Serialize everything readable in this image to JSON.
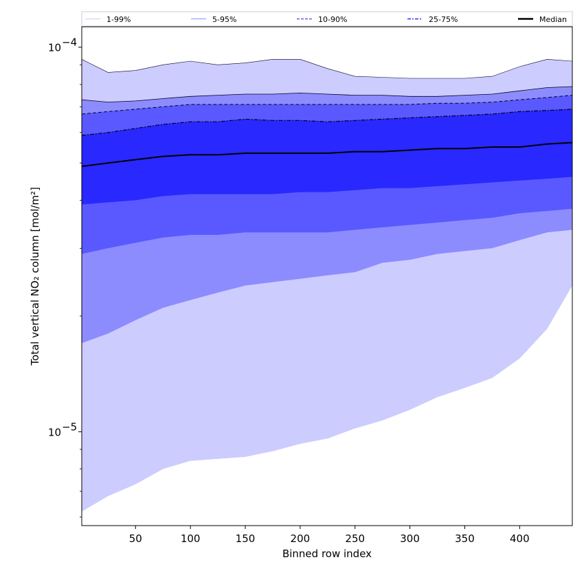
{
  "chart_data": {
    "type": "area",
    "title": "",
    "xlabel": "Binned row index",
    "ylabel": "Total vertical NO₂ column [mol/m²]",
    "xlim": [
      1,
      448
    ],
    "ylim": [
      5.7e-06,
      0.000113
    ],
    "yscale": "log",
    "x_ticks": [
      50,
      100,
      150,
      200,
      250,
      300,
      350,
      400
    ],
    "y_ticks": [
      {
        "value": 1e-05,
        "base": "10",
        "exp": "−5"
      },
      {
        "value": 0.0001,
        "base": "10",
        "exp": "−4"
      }
    ],
    "legend_position": "top",
    "legend": [
      {
        "label": "1-99%",
        "style": "solid-thin",
        "color": "#ccccff"
      },
      {
        "label": "5-95%",
        "style": "solid-thin",
        "color": "#8c8cff"
      },
      {
        "label": "10-90%",
        "style": "dashed",
        "color": "#5a5aff"
      },
      {
        "label": "25-75%",
        "style": "dashdot",
        "color": "#2b2bff"
      },
      {
        "label": "Median",
        "style": "solid-thick",
        "color": "#000000"
      }
    ],
    "colors": {
      "band_1_99": "#ccccff",
      "band_5_95": "#8c8cff",
      "band_10_90": "#5959ff",
      "band_25_75": "#2828ff",
      "median": "#000000"
    },
    "x": [
      1,
      25,
      50,
      75,
      100,
      125,
      150,
      175,
      200,
      225,
      250,
      275,
      300,
      325,
      350,
      375,
      400,
      425,
      448
    ],
    "series": [
      {
        "name": "99%",
        "values": [
          9.3e-05,
          8.6e-05,
          8.7e-05,
          9e-05,
          9.2e-05,
          9e-05,
          9.1e-05,
          9.3e-05,
          9.3e-05,
          8.8e-05,
          8.4e-05,
          8.35e-05,
          8.3e-05,
          8.3e-05,
          8.3e-05,
          8.4e-05,
          8.9e-05,
          9.3e-05,
          9.2e-05
        ]
      },
      {
        "name": "95%",
        "values": [
          7.3e-05,
          7.2e-05,
          7.25e-05,
          7.35e-05,
          7.45e-05,
          7.5e-05,
          7.55e-05,
          7.55e-05,
          7.6e-05,
          7.55e-05,
          7.5e-05,
          7.5e-05,
          7.45e-05,
          7.45e-05,
          7.5e-05,
          7.55e-05,
          7.7e-05,
          7.85e-05,
          7.9e-05
        ]
      },
      {
        "name": "90%",
        "values": [
          6.7e-05,
          6.8e-05,
          6.9e-05,
          7e-05,
          7.1e-05,
          7.1e-05,
          7.1e-05,
          7.1e-05,
          7.1e-05,
          7.1e-05,
          7.1e-05,
          7.1e-05,
          7.1e-05,
          7.15e-05,
          7.15e-05,
          7.2e-05,
          7.3e-05,
          7.4e-05,
          7.5e-05
        ]
      },
      {
        "name": "75%",
        "values": [
          5.9e-05,
          6e-05,
          6.15e-05,
          6.3e-05,
          6.4e-05,
          6.4e-05,
          6.5e-05,
          6.45e-05,
          6.45e-05,
          6.4e-05,
          6.45e-05,
          6.5e-05,
          6.55e-05,
          6.6e-05,
          6.65e-05,
          6.7e-05,
          6.8e-05,
          6.85e-05,
          6.9e-05
        ]
      },
      {
        "name": "Median",
        "values": [
          4.9e-05,
          5e-05,
          5.1e-05,
          5.2e-05,
          5.25e-05,
          5.25e-05,
          5.3e-05,
          5.3e-05,
          5.3e-05,
          5.3e-05,
          5.35e-05,
          5.35e-05,
          5.4e-05,
          5.45e-05,
          5.45e-05,
          5.5e-05,
          5.5e-05,
          5.6e-05,
          5.65e-05
        ]
      },
      {
        "name": "25%",
        "values": [
          3.9e-05,
          3.95e-05,
          4e-05,
          4.1e-05,
          4.15e-05,
          4.15e-05,
          4.15e-05,
          4.15e-05,
          4.2e-05,
          4.2e-05,
          4.25e-05,
          4.3e-05,
          4.3e-05,
          4.35e-05,
          4.4e-05,
          4.45e-05,
          4.5e-05,
          4.55e-05,
          4.6e-05
        ]
      },
      {
        "name": "10%",
        "values": [
          2.9e-05,
          3e-05,
          3.1e-05,
          3.2e-05,
          3.25e-05,
          3.25e-05,
          3.3e-05,
          3.3e-05,
          3.3e-05,
          3.3e-05,
          3.35e-05,
          3.4e-05,
          3.45e-05,
          3.5e-05,
          3.55e-05,
          3.6e-05,
          3.7e-05,
          3.75e-05,
          3.8e-05
        ]
      },
      {
        "name": "5%",
        "values": [
          1.7e-05,
          1.8e-05,
          1.95e-05,
          2.1e-05,
          2.2e-05,
          2.3e-05,
          2.4e-05,
          2.45e-05,
          2.5e-05,
          2.55e-05,
          2.6e-05,
          2.75e-05,
          2.8e-05,
          2.9e-05,
          2.95e-05,
          3e-05,
          3.15e-05,
          3.3e-05,
          3.35e-05
        ]
      },
      {
        "name": "1%",
        "values": [
          6.2e-06,
          6.8e-06,
          7.3e-06,
          8e-06,
          8.4e-06,
          8.5e-06,
          8.6e-06,
          8.9e-06,
          9.3e-06,
          9.6e-06,
          1.02e-05,
          1.07e-05,
          1.14e-05,
          1.23e-05,
          1.3e-05,
          1.38e-05,
          1.55e-05,
          1.85e-05,
          2.4e-05
        ]
      }
    ]
  }
}
